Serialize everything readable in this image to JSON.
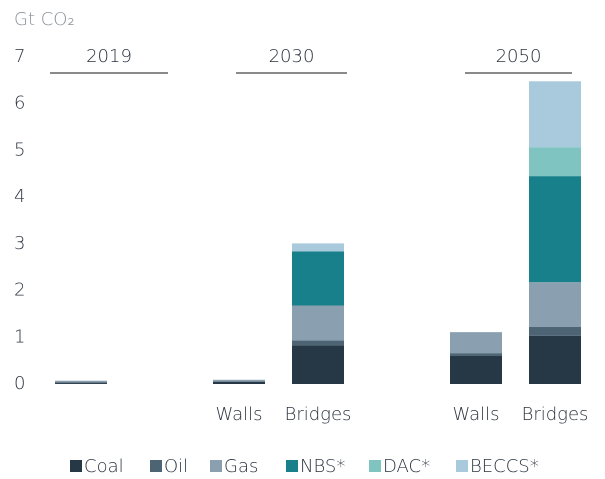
{
  "chart_data": {
    "type": "stacked_bar",
    "y_axis_label": "Gt CO₂",
    "groups": [
      "2019",
      "2030",
      "2050"
    ],
    "categories": [
      null,
      "Walls",
      "Bridges",
      "Walls",
      "Bridges"
    ],
    "series": [
      {
        "name": "Coal",
        "color": "#263746",
        "values": [
          0.02,
          0.05,
          0.83,
          0.6,
          1.03
        ]
      },
      {
        "name": "Oil",
        "color": "#4d6475",
        "values": [
          0.02,
          0.01,
          0.1,
          0.06,
          0.19
        ]
      },
      {
        "name": "Gas",
        "color": "#8aa0b0",
        "values": [
          0.03,
          0.03,
          0.75,
          0.45,
          0.96
        ]
      },
      {
        "name": "NBS*",
        "color": "#17808a",
        "values": [
          0,
          0,
          1.16,
          0,
          2.27
        ]
      },
      {
        "name": "DAC*",
        "color": "#7fc4c0",
        "values": [
          0,
          0,
          0,
          0,
          0.62
        ]
      },
      {
        "name": "BECCS*",
        "color": "#a9c9dc",
        "values": [
          0,
          0,
          0.17,
          0,
          1.41
        ]
      }
    ],
    "ylim": [
      0,
      7
    ],
    "yticks": [
      0,
      1,
      2,
      3,
      4,
      5,
      6,
      7
    ]
  }
}
